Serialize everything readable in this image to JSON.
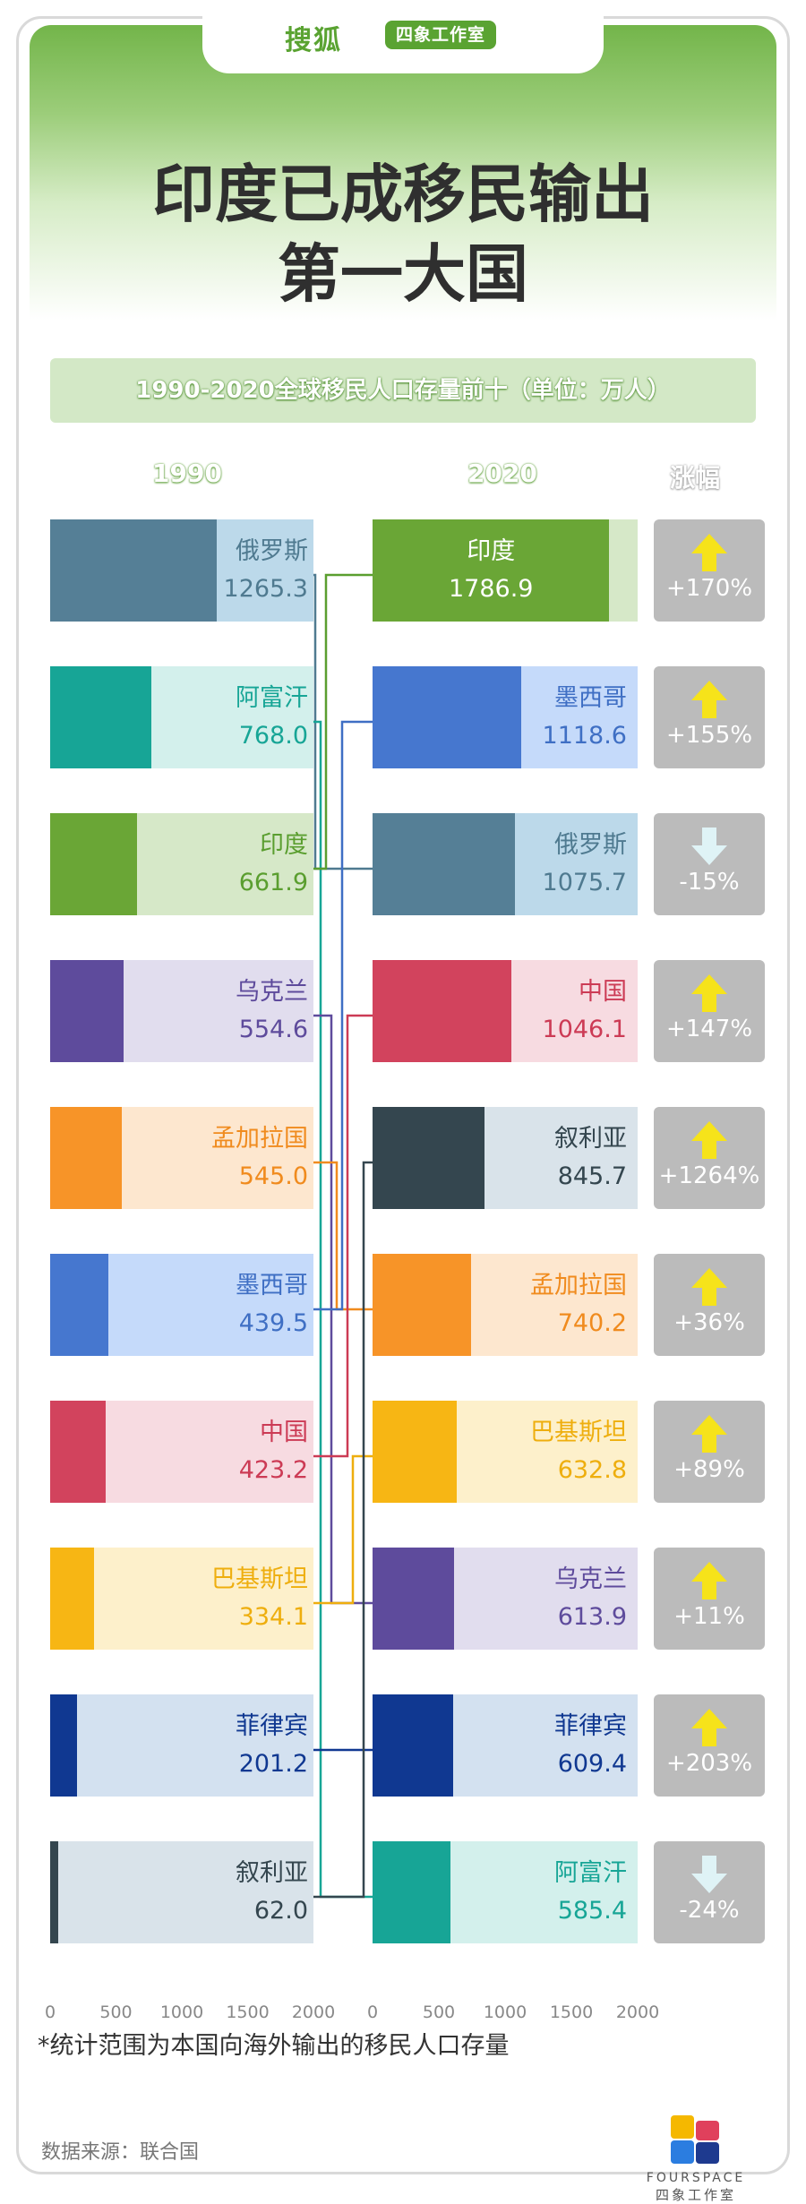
{
  "header": {
    "logo": "搜狐",
    "studio": "四象工作室",
    "title_line1": "印度已成移民输出",
    "title_line2": "第一大国"
  },
  "banner": "1990-2020全球移民人口存量前十（单位：万人）",
  "columns": {
    "left": "1990",
    "right": "2020",
    "change": "涨幅"
  },
  "chart_data": {
    "type": "bar",
    "xlim": [
      0,
      2000
    ],
    "ticks": [
      "0",
      "500",
      "1000",
      "1500",
      "2000"
    ],
    "series": [
      {
        "name": "1990",
        "categories": [
          "俄罗斯",
          "阿富汗",
          "印度",
          "乌克兰",
          "孟加拉国",
          "墨西哥",
          "中国",
          "巴基斯坦",
          "菲律宾",
          "叙利亚"
        ],
        "values": [
          1265.3,
          768.0,
          661.9,
          554.6,
          545.0,
          439.5,
          423.2,
          334.1,
          201.2,
          62.0
        ]
      },
      {
        "name": "2020",
        "categories": [
          "印度",
          "墨西哥",
          "俄罗斯",
          "中国",
          "叙利亚",
          "孟加拉国",
          "巴基斯坦",
          "乌克兰",
          "菲律宾",
          "阿富汗"
        ],
        "values": [
          1786.9,
          1118.6,
          1075.7,
          1046.1,
          845.7,
          740.2,
          632.8,
          613.9,
          609.4,
          585.4
        ],
        "change": [
          "+170%",
          "+155%",
          "-15%",
          "+147%",
          "+1264%",
          "+36%",
          "+89%",
          "+11%",
          "+203%",
          "-24%"
        ]
      }
    ],
    "left_labels": [
      "1265.3",
      "768.0",
      "661.9",
      "554.6",
      "545.0",
      "439.5",
      "423.2",
      "334.1",
      "201.2",
      "62.0"
    ],
    "right_labels": [
      "1786.9",
      "1118.6",
      "1075.7",
      "1046.1",
      "845.7",
      "740.2",
      "632.8",
      "613.9",
      "609.4",
      "585.4"
    ],
    "colors": {
      "俄罗斯": {
        "dark": "#557f96",
        "light": "#bcd9ea"
      },
      "阿富汗": {
        "dark": "#17a596",
        "light": "#d3f0ec"
      },
      "印度": {
        "dark": "#6aa636",
        "light": "#d6e8c8"
      },
      "乌克兰": {
        "dark": "#5e4b9c",
        "light": "#e1ddee"
      },
      "孟加拉国": {
        "dark": "#f79428",
        "light": "#fde7cf"
      },
      "墨西哥": {
        "dark": "#4677cf",
        "light": "#c5dafa"
      },
      "中国": {
        "dark": "#d2435d",
        "light": "#f7dbe1"
      },
      "巴基斯坦": {
        "dark": "#f7b614",
        "light": "#fdf0cb"
      },
      "菲律宾": {
        "dark": "#103891",
        "light": "#d3e1f0"
      },
      "叙利亚": {
        "dark": "#34464f",
        "light": "#d9e3ea"
      }
    },
    "label_colors": {
      "俄罗斯": "#4f7a90",
      "阿富汗": "#17a596",
      "印度": "#5a9e2f",
      "乌克兰": "#5e4b9c",
      "孟加拉国": "#f08b1e",
      "墨西哥": "#3f6fc4",
      "中国": "#cc3b55",
      "巴基斯坦": "#eeae0e",
      "菲律宾": "#103891",
      "叙利亚": "#34464f"
    }
  },
  "footnote": "*统计范围为本国向海外输出的移民人口存量",
  "source": "数据来源：联合国",
  "brand": {
    "en": "FOURSPACE",
    "cn": "四象工作室"
  }
}
